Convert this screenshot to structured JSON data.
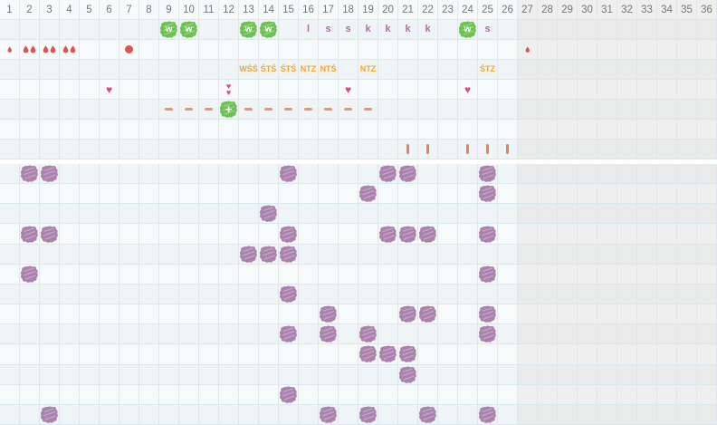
{
  "chart": {
    "columns": 36,
    "active_columns": 26,
    "day_labels": [
      "1",
      "2",
      "3",
      "4",
      "5",
      "6",
      "7",
      "8",
      "9",
      "10",
      "11",
      "12",
      "13",
      "14",
      "15",
      "16",
      "17",
      "18",
      "19",
      "20",
      "21",
      "22",
      "23",
      "24",
      "25",
      "26",
      "27",
      "28",
      "29",
      "30",
      "31",
      "32",
      "33",
      "34",
      "35",
      "36"
    ]
  },
  "colors": {
    "green_blob": "#6cc150",
    "purple_blob": "#ab81ae",
    "letter": "#b56ba3",
    "droplet": "#db5452",
    "heart": "#e5487a",
    "dash": "#f2916b",
    "bar": "#ef8052",
    "observation_text": "#f6a42d",
    "header_text": "#6e7883",
    "grid_line": "#d8e9f1",
    "inactive_background": "#e9eaea"
  },
  "upper_grid": {
    "rows": [
      {
        "type": "header",
        "name": "day-number-row"
      },
      {
        "type": "peak",
        "name": "peak-row",
        "blobs": [
          {
            "col": 9,
            "letter": "w"
          },
          {
            "col": 10,
            "letter": "w"
          },
          {
            "col": 13,
            "letter": "w"
          },
          {
            "col": 14,
            "letter": "w"
          },
          {
            "col": 24,
            "letter": "w"
          }
        ],
        "letters": [
          {
            "col": 16,
            "letter": "l"
          },
          {
            "col": 17,
            "letter": "s"
          },
          {
            "col": 18,
            "letter": "s"
          },
          {
            "col": 19,
            "letter": "k"
          },
          {
            "col": 20,
            "letter": "k"
          },
          {
            "col": 21,
            "letter": "k"
          },
          {
            "col": 22,
            "letter": "k"
          },
          {
            "col": 25,
            "letter": "s"
          }
        ]
      },
      {
        "type": "bleeding",
        "name": "bleeding-row",
        "marks": [
          {
            "col": 1,
            "style": "drop",
            "count": 1,
            "small": true
          },
          {
            "col": 2,
            "style": "drop",
            "count": 2
          },
          {
            "col": 3,
            "style": "drop",
            "count": 2
          },
          {
            "col": 4,
            "style": "drop",
            "count": 2
          },
          {
            "col": 7,
            "style": "dot"
          },
          {
            "col": 27,
            "style": "drop",
            "count": 1,
            "small": true
          }
        ]
      },
      {
        "type": "labels",
        "name": "observation-row",
        "labels": [
          {
            "col": 13,
            "text": "WŚŚ"
          },
          {
            "col": 14,
            "text": "ŚTŚ"
          },
          {
            "col": 15,
            "text": "ŚTŚ"
          },
          {
            "col": 16,
            "text": "NTZ"
          },
          {
            "col": 17,
            "text": "NTŚ"
          },
          {
            "col": 19,
            "text": "NTZ"
          },
          {
            "col": 25,
            "text": "ŚTZ"
          }
        ]
      },
      {
        "type": "hearts",
        "name": "heart-row",
        "marks": [
          {
            "col": 6,
            "count": 1
          },
          {
            "col": 12,
            "count": 2
          },
          {
            "col": 18,
            "count": 1
          },
          {
            "col": 24,
            "count": 1
          }
        ]
      },
      {
        "type": "dashes",
        "name": "dash-row",
        "dash_cols": [
          9,
          10,
          11,
          13,
          14,
          15,
          16,
          17,
          18,
          19
        ],
        "plus_col": 12,
        "plus_label": "+"
      },
      {
        "type": "empty",
        "name": "spacer-row"
      },
      {
        "type": "bars",
        "name": "tick-row",
        "bar_cols": [
          21,
          22,
          24,
          25,
          26
        ]
      }
    ]
  },
  "lower_grid": {
    "rows": [
      {
        "blob_cols": [
          2,
          3,
          15,
          20,
          21,
          25
        ]
      },
      {
        "blob_cols": [
          19,
          25
        ]
      },
      {
        "blob_cols": [
          14
        ]
      },
      {
        "blob_cols": [
          2,
          3,
          15,
          20,
          21,
          22,
          25
        ]
      },
      {
        "blob_cols": [
          13,
          14,
          15
        ]
      },
      {
        "blob_cols": [
          2,
          25
        ]
      },
      {
        "blob_cols": [
          15
        ]
      },
      {
        "blob_cols": [
          17,
          21,
          22,
          25
        ]
      },
      {
        "blob_cols": [
          15,
          17,
          19,
          25
        ]
      },
      {
        "blob_cols": [
          19,
          20,
          21
        ]
      },
      {
        "blob_cols": [
          21
        ]
      },
      {
        "blob_cols": [
          15
        ]
      },
      {
        "blob_cols": [
          3,
          17,
          19,
          22,
          25
        ]
      }
    ]
  }
}
